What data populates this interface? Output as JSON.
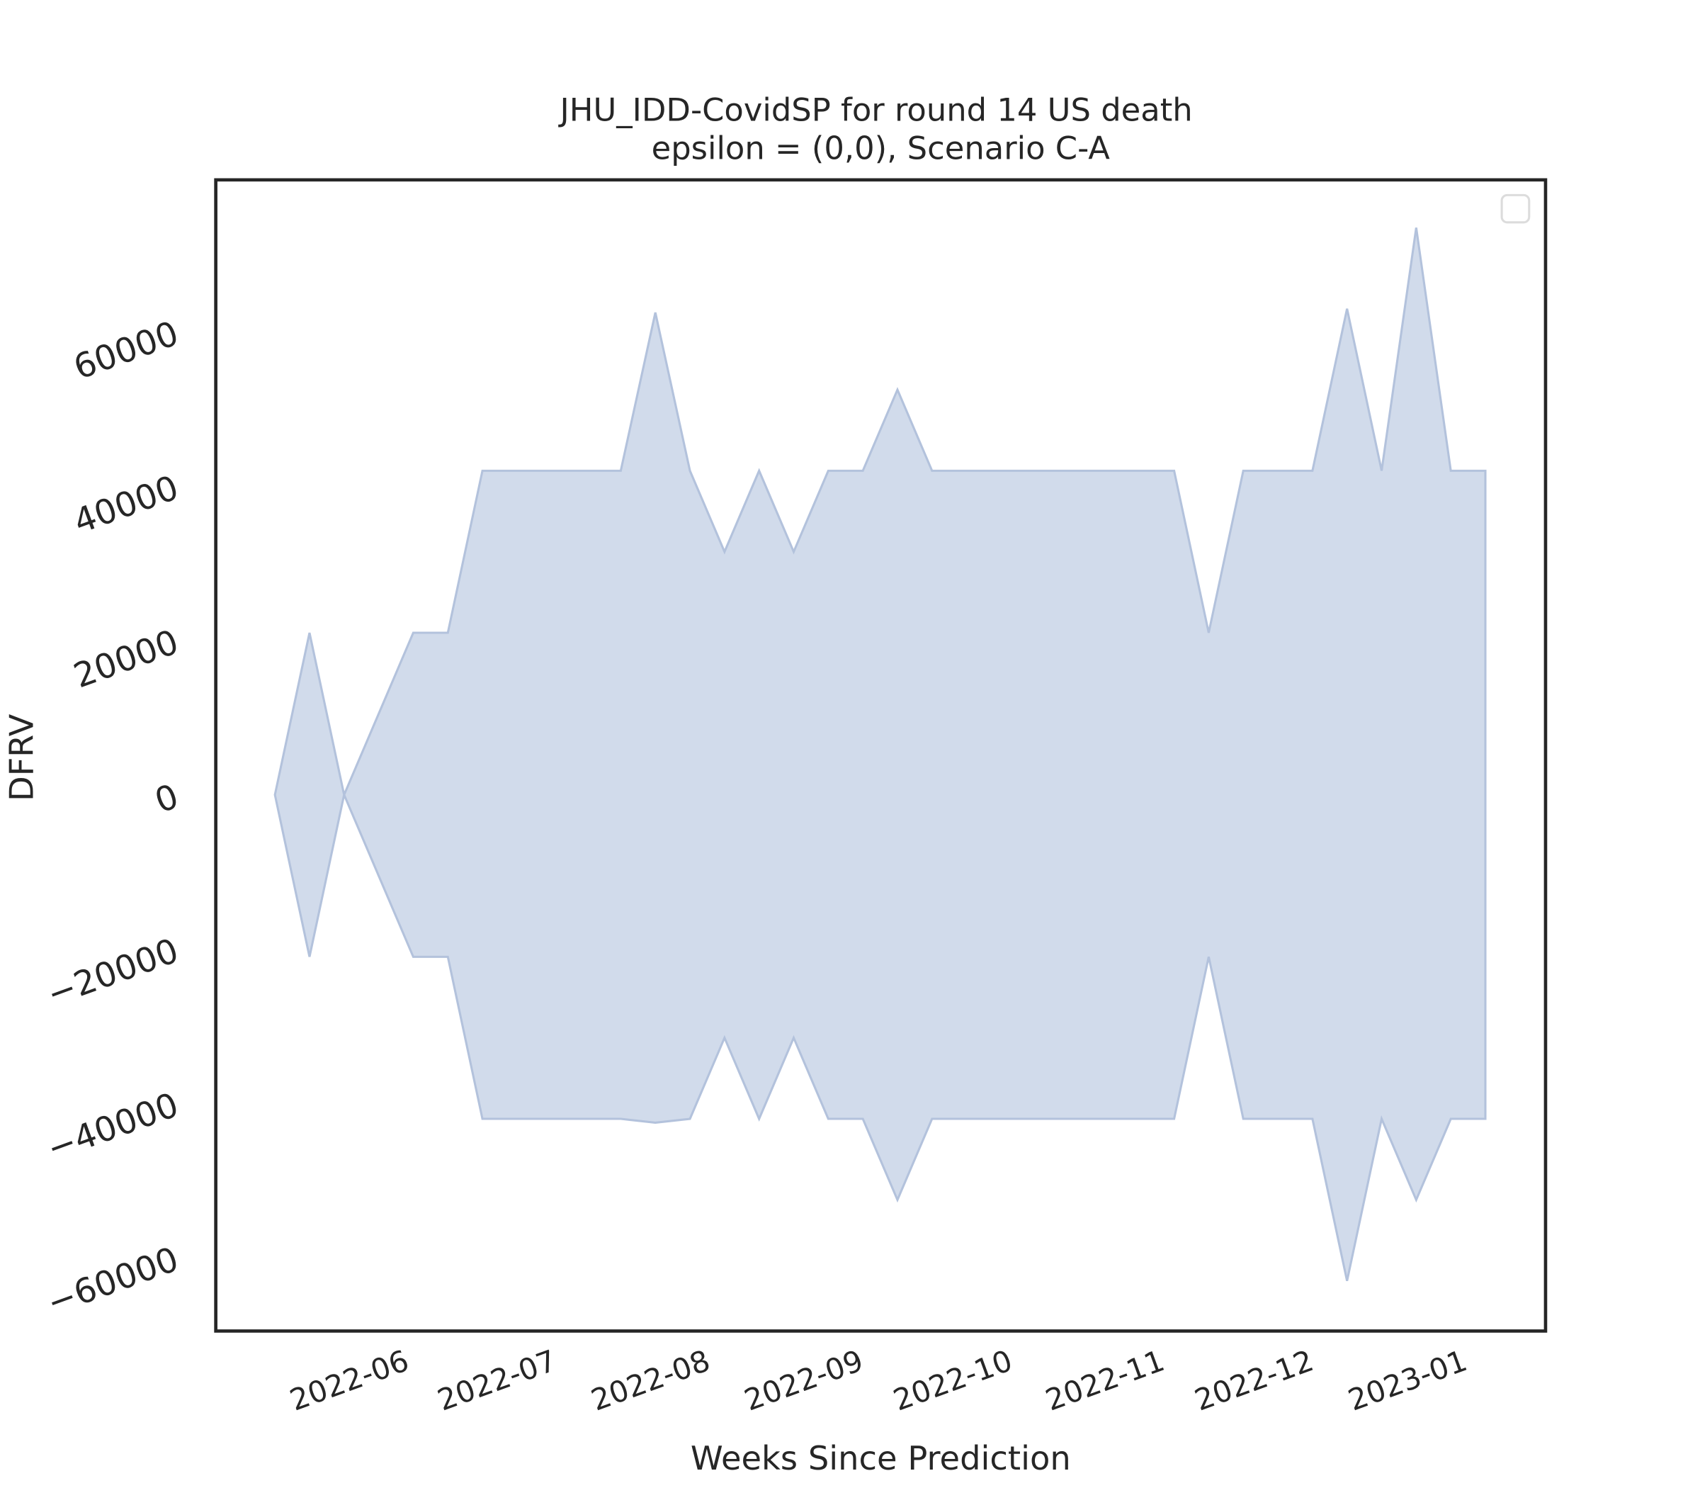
{
  "chart_data": {
    "type": "band",
    "title_lines": [
      "JHU_IDD-CovidSP for round 14 US death",
      "epsilon = (0,0), Scenario C-A"
    ],
    "x_label": "Weeks Since Prediction",
    "y_label": "DFRV",
    "x": [
      0,
      1,
      2,
      3,
      4,
      5,
      6,
      7,
      8,
      9,
      10,
      11,
      12,
      13,
      14,
      15,
      16,
      17,
      18,
      19,
      20,
      21,
      22,
      23,
      24,
      25,
      26,
      27,
      28,
      29,
      30,
      31,
      32,
      33,
      34,
      35
    ],
    "upper": [
      0,
      21000,
      0,
      10500,
      21000,
      21000,
      42000,
      42000,
      42000,
      42000,
      42000,
      62500,
      42000,
      31500,
      42000,
      31500,
      42000,
      42000,
      52500,
      42000,
      42000,
      42000,
      42000,
      42000,
      42000,
      42000,
      42000,
      21000,
      42000,
      42000,
      42000,
      63000,
      42000,
      73500,
      42000,
      42000
    ],
    "lower": [
      0,
      -21000,
      0,
      -10500,
      -21000,
      -21000,
      -42000,
      -42000,
      -42000,
      -42000,
      -42000,
      -42500,
      -42000,
      -31500,
      -42000,
      -31500,
      -42000,
      -42000,
      -52500,
      -42000,
      -42000,
      -42000,
      -42000,
      -42000,
      -42000,
      -42000,
      -42000,
      -21000,
      -42000,
      -42000,
      -42000,
      -63000,
      -42000,
      -52500,
      -42000,
      -42000
    ],
    "color": "#d1dbeb",
    "edge_color": "#b3c2dc",
    "xlim": [
      -1.71,
      36.74
    ],
    "xticks": [
      {
        "value": 2.25,
        "label": "2022-06"
      },
      {
        "value": 6.52,
        "label": "2022-07"
      },
      {
        "value": 10.96,
        "label": "2022-08"
      },
      {
        "value": 15.39,
        "label": "2022-09"
      },
      {
        "value": 19.7,
        "label": "2022-10"
      },
      {
        "value": 24.1,
        "label": "2022-11"
      },
      {
        "value": 28.41,
        "label": "2022-12"
      },
      {
        "value": 32.85,
        "label": "2023-01"
      }
    ],
    "ylim": [
      -69500,
      79700
    ],
    "yticks": [
      {
        "value": -60000,
        "label": "−60000"
      },
      {
        "value": -40000,
        "label": "−40000"
      },
      {
        "value": -20000,
        "label": "−20000"
      },
      0,
      20000,
      40000,
      60000
    ],
    "grid": false
  }
}
